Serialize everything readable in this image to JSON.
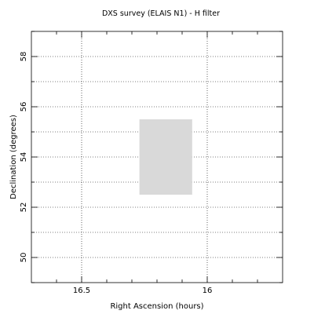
{
  "chart_data": {
    "type": "area",
    "title": "DXS survey (ELAIS N1) - H filter",
    "xlabel": "Right Ascension (hours)",
    "ylabel": "Declination (degrees)",
    "x_axis_reversed": true,
    "xlim": [
      16.7,
      15.7
    ],
    "ylim": [
      49,
      59
    ],
    "x_ticks": [
      16.5,
      16
    ],
    "x_tick_labels": [
      "16.5",
      "16"
    ],
    "x_minor_ticks": [
      16.6,
      16.4,
      16.3,
      16.2,
      16.1,
      15.9,
      15.8
    ],
    "y_ticks": [
      50,
      52,
      54,
      56,
      58
    ],
    "y_tick_labels": [
      "50",
      "52",
      "54",
      "56",
      "58"
    ],
    "y_minor_ticks": [
      49,
      51,
      53,
      55,
      57,
      59
    ],
    "x_grid": [
      16.5,
      16
    ],
    "y_grid": [
      50,
      51,
      52,
      53,
      54,
      55,
      56,
      57,
      58
    ],
    "grid": true,
    "regions": [
      {
        "ra_range": [
          16.27,
          16.06
        ],
        "dec_range": [
          52.5,
          55.5
        ],
        "color": "#d9d9d9"
      }
    ]
  }
}
